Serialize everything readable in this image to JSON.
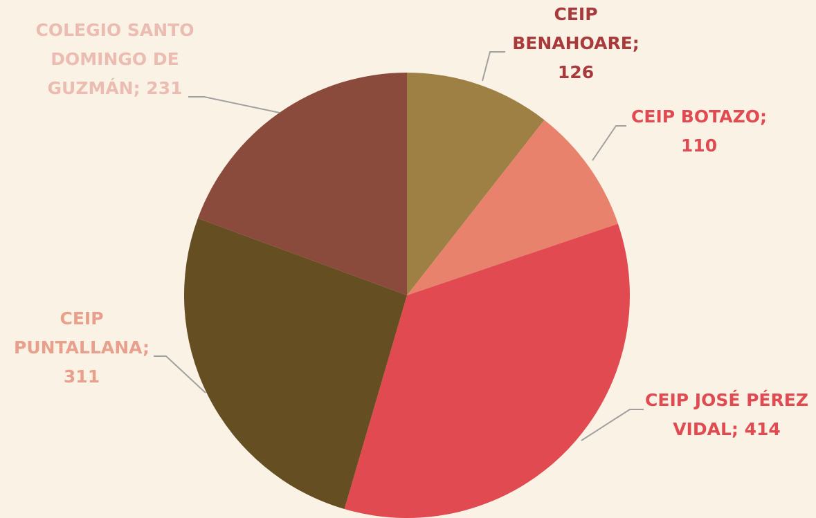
{
  "chart_data": {
    "type": "pie",
    "values": [
      126,
      110,
      414,
      311,
      231
    ],
    "value_labels": [
      [
        "CEIP",
        "BENAHOARE;",
        "126"
      ],
      [
        "CEIP BOTAZO;",
        "110"
      ],
      [
        "CEIP JOSÉ PÉREZ",
        "VIDAL; 414"
      ],
      [
        "CEIP",
        "PUNTALLANA;",
        "311"
      ],
      [
        "COLEGIO SANTO",
        "DOMINGO DE",
        "GUZMÁN; 231"
      ]
    ],
    "colors": [
      "#9e8044",
      "#e8826c",
      "#e04a50",
      "#654f22",
      "#8a4a3c"
    ],
    "label_colors": [
      "#a83a3c",
      "#e04a50",
      "#e04a50",
      "#e8a08c",
      "#ebbcb2"
    ]
  }
}
